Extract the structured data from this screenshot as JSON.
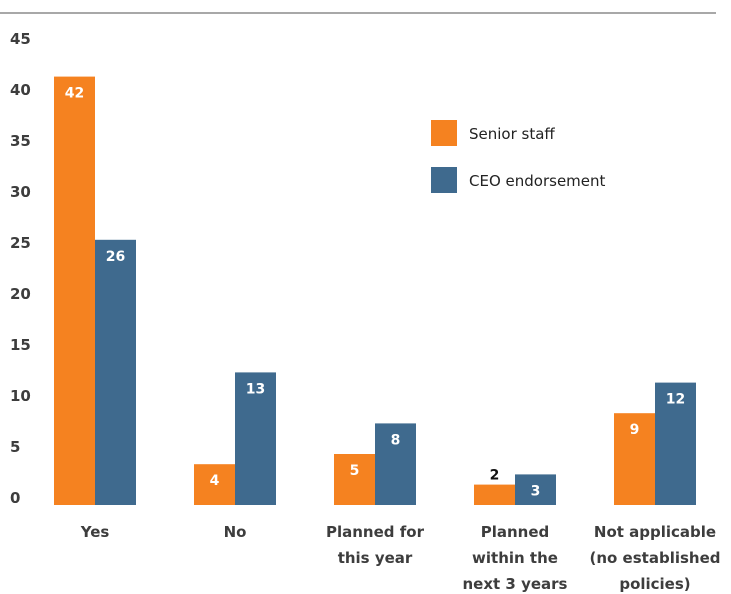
{
  "chart_data": {
    "type": "bar",
    "categories": [
      [
        "Yes"
      ],
      [
        "No"
      ],
      [
        "Planned for",
        "this year"
      ],
      [
        "Planned",
        "within the",
        "next 3 years"
      ],
      [
        "Not applicable",
        "(no established",
        "policies)"
      ]
    ],
    "series": [
      {
        "name": "Senior staff",
        "values": [
          42,
          4,
          5,
          2,
          9
        ],
        "color": "#f58220"
      },
      {
        "name": "CEO endorsement",
        "values": [
          26,
          13,
          8,
          3,
          12
        ],
        "color": "#3f6a8e"
      }
    ],
    "value_labels": {
      "Senior staff": [
        "42",
        "4",
        "5",
        "2",
        "9"
      ],
      "CEO endorsement": [
        "26",
        "13",
        "8",
        "3",
        "12"
      ]
    },
    "y_ticks": [
      "0",
      "5",
      "10",
      "15",
      "20",
      "25",
      "30",
      "35",
      "40",
      "45"
    ],
    "ylim": [
      0,
      45
    ],
    "grid": false,
    "legend_position": "upper-right",
    "colors": {
      "top_rule": "#8c8c8c",
      "axis_text": "#3d3d3d"
    }
  }
}
